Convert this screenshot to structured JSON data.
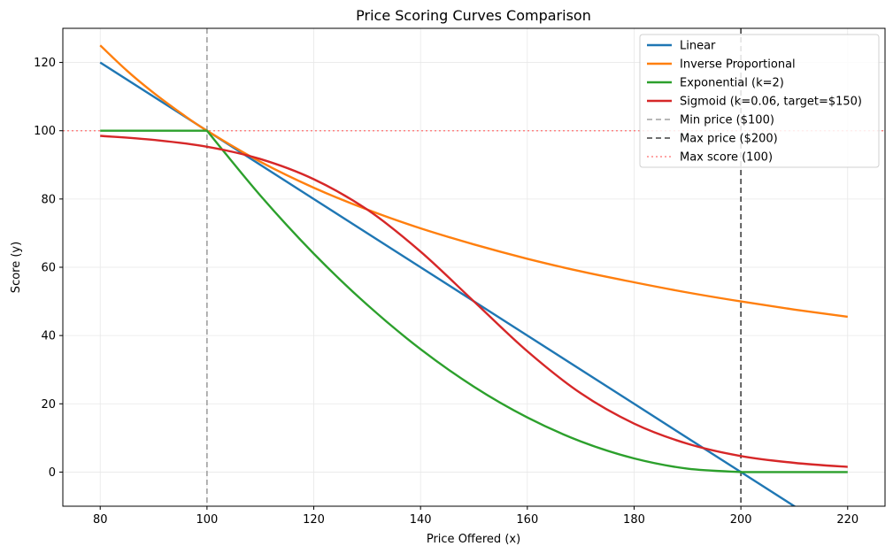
{
  "chart_data": {
    "type": "line",
    "title": "Price Scoring Curves Comparison",
    "xlabel": "Price Offered (x)",
    "ylabel": "Score (y)",
    "xlim": [
      73,
      227
    ],
    "ylim": [
      -10,
      130
    ],
    "xticks": [
      80,
      100,
      120,
      140,
      160,
      180,
      200,
      220
    ],
    "yticks": [
      0,
      20,
      40,
      60,
      80,
      100,
      120
    ],
    "grid": true,
    "legend_position": "upper-right",
    "series": [
      {
        "name": "Linear",
        "color": "#1f77b4",
        "x": [
          80,
          100,
          120,
          140,
          160,
          180,
          200,
          210.5
        ],
        "y": [
          120,
          100,
          80,
          60,
          40,
          20,
          0,
          -10.5
        ]
      },
      {
        "name": "Inverse Proportional",
        "color": "#ff7f0e",
        "x": [
          80,
          85,
          90,
          95,
          100,
          110,
          120,
          130,
          140,
          150,
          160,
          170,
          180,
          190,
          200,
          210,
          220
        ],
        "y": [
          125,
          117.6,
          111.1,
          105.3,
          100,
          90.9,
          83.3,
          76.9,
          71.4,
          66.7,
          62.5,
          58.8,
          55.6,
          52.6,
          50,
          47.6,
          45.5
        ]
      },
      {
        "name": "Exponential (k=2)",
        "color": "#2ca02c",
        "x": [
          80,
          90,
          100,
          110,
          120,
          130,
          140,
          150,
          160,
          170,
          180,
          190,
          200,
          210,
          220
        ],
        "y": [
          100,
          100,
          100,
          81,
          64,
          49,
          36,
          25,
          16,
          9,
          4,
          1,
          0,
          0,
          0
        ]
      },
      {
        "name": "Sigmoid (k=0.06, target=$150)",
        "color": "#d62728",
        "x": [
          80,
          90,
          100,
          110,
          120,
          130,
          140,
          150,
          160,
          170,
          180,
          190,
          200,
          210,
          220
        ],
        "y": [
          98.5,
          97.3,
          95.3,
          91.7,
          85.8,
          76.9,
          64.6,
          50,
          35.4,
          23.1,
          14.2,
          8.3,
          4.7,
          2.7,
          1.5
        ]
      }
    ],
    "reference_lines": [
      {
        "name": "Min price ($100)",
        "orientation": "vertical",
        "value": 100,
        "color": "#a0a0a0",
        "style": "dashed"
      },
      {
        "name": "Max price ($200)",
        "orientation": "vertical",
        "value": 200,
        "color": "#404040",
        "style": "dashed"
      },
      {
        "name": "Max score (100)",
        "orientation": "horizontal",
        "value": 100,
        "color": "#ff6f6f",
        "style": "dotted"
      }
    ]
  }
}
